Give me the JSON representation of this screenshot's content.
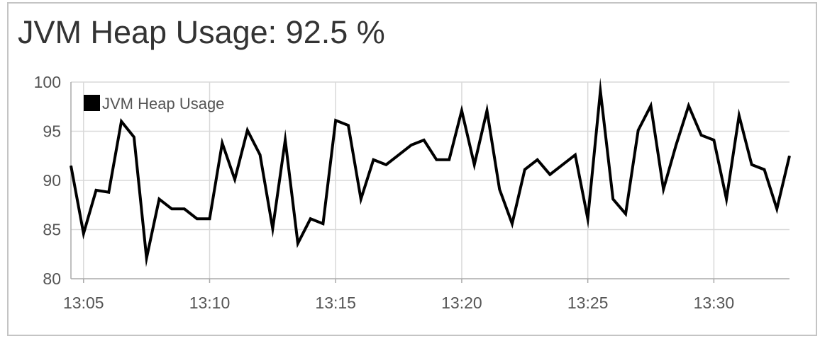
{
  "panel": {
    "title": "JVM Heap Usage: 92.5 %"
  },
  "colors": {
    "line": "#000000",
    "grid": "#d9d9d9",
    "axis": "#aaaaaa",
    "text": "#555555",
    "border": "#c4c4c4"
  },
  "chart_data": {
    "type": "line",
    "title": "JVM Heap Usage: 92.5 %",
    "xlabel": "",
    "ylabel": "",
    "ylim": [
      80,
      100
    ],
    "xlim": [
      "13:04:30",
      "13:33:00"
    ],
    "grid": true,
    "legend_position": "top-left",
    "y_ticks": [
      "80",
      "85",
      "90",
      "95",
      "100"
    ],
    "x_ticks": [
      "13:05",
      "13:10",
      "13:15",
      "13:20",
      "13:25",
      "13:30"
    ],
    "series": [
      {
        "name": "JVM Heap Usage",
        "color": "#000000",
        "x": [
          "13:04:30",
          "13:05:00",
          "13:05:30",
          "13:06:00",
          "13:06:30",
          "13:07:00",
          "13:07:30",
          "13:08:00",
          "13:08:30",
          "13:09:00",
          "13:09:30",
          "13:10:00",
          "13:10:30",
          "13:11:00",
          "13:11:30",
          "13:12:00",
          "13:12:30",
          "13:13:00",
          "13:13:30",
          "13:14:00",
          "13:14:30",
          "13:15:00",
          "13:15:30",
          "13:16:00",
          "13:16:30",
          "13:17:00",
          "13:17:30",
          "13:18:00",
          "13:18:30",
          "13:19:00",
          "13:19:30",
          "13:20:00",
          "13:20:30",
          "13:21:00",
          "13:21:30",
          "13:22:00",
          "13:22:30",
          "13:23:00",
          "13:23:30",
          "13:24:00",
          "13:24:30",
          "13:25:00",
          "13:25:30",
          "13:26:00",
          "13:26:30",
          "13:27:00",
          "13:27:30",
          "13:28:00",
          "13:28:30",
          "13:29:00",
          "13:29:30",
          "13:30:00",
          "13:30:30",
          "13:31:00",
          "13:31:30",
          "13:32:00",
          "13:32:30",
          "13:33:00"
        ],
        "values": [
          91.5,
          84.6,
          89.0,
          88.8,
          96.0,
          94.4,
          82.1,
          88.1,
          87.1,
          87.1,
          86.1,
          86.1,
          93.8,
          90.1,
          95.1,
          92.6,
          85.1,
          94.1,
          83.6,
          86.1,
          85.6,
          96.1,
          95.6,
          88.1,
          92.1,
          91.6,
          92.6,
          93.6,
          94.1,
          92.1,
          92.1,
          97.1,
          91.6,
          97.1,
          89.1,
          85.6,
          91.1,
          92.1,
          90.6,
          91.6,
          92.6,
          86.1,
          99.1,
          88.1,
          86.6,
          95.1,
          97.6,
          89.1,
          93.6,
          97.6,
          94.6,
          94.1,
          88.1,
          96.6,
          91.6,
          91.1,
          87.1,
          92.5
        ]
      }
    ]
  }
}
